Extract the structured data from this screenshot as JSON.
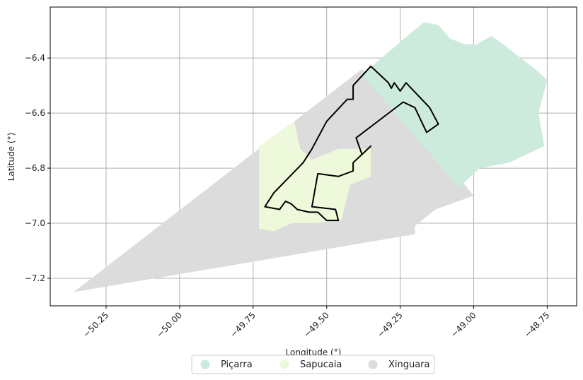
{
  "chart_data": {
    "type": "map",
    "xlabel": "Longitude (°)",
    "ylabel": "Latitude (°)",
    "xlim": [
      -50.44,
      -48.65
    ],
    "ylim": [
      -7.3,
      -6.215
    ],
    "grid": true,
    "legend_placement": "bottom-center",
    "xticks": [
      -50.25,
      -50.0,
      -49.75,
      -49.5,
      -49.25,
      -49.0,
      -48.75
    ],
    "xtick_labels": [
      "−50.25",
      "−50.00",
      "−49.75",
      "−49.50",
      "−49.25",
      "−49.00",
      "−48.75"
    ],
    "yticks": [
      -6.4,
      -6.6,
      -6.8,
      -7.0,
      -7.2
    ],
    "ytick_labels": [
      "−6.4",
      "−6.6",
      "−6.8",
      "−7.0",
      "−7.2"
    ],
    "legend": [
      {
        "name": "Piçarra",
        "color": "#cdebdc"
      },
      {
        "name": "Sapucaia",
        "color": "#eef8da"
      },
      {
        "name": "Xinguara",
        "color": "#dcdcdc"
      }
    ],
    "regions": [
      {
        "name": "Xinguara",
        "color": "#dcdcdc",
        "coords": [
          [
            -50.36,
            -7.25
          ],
          [
            -49.38,
            -6.44
          ],
          [
            -49.3,
            -6.52
          ],
          [
            -49.15,
            -6.7
          ],
          [
            -49.0,
            -6.9
          ],
          [
            -49.13,
            -6.95
          ],
          [
            -49.2,
            -7.01
          ],
          [
            -49.2,
            -7.04
          ],
          [
            -50.36,
            -7.25
          ]
        ]
      },
      {
        "name": "Piçarra",
        "color": "#cdebdc",
        "coords": [
          [
            -49.38,
            -6.46
          ],
          [
            -49.17,
            -6.27
          ],
          [
            -49.12,
            -6.28
          ],
          [
            -49.08,
            -6.33
          ],
          [
            -49.03,
            -6.35
          ],
          [
            -48.99,
            -6.35
          ],
          [
            -48.94,
            -6.32
          ],
          [
            -48.9,
            -6.35
          ],
          [
            -48.78,
            -6.45
          ],
          [
            -48.75,
            -6.48
          ],
          [
            -48.76,
            -6.52
          ],
          [
            -48.78,
            -6.6
          ],
          [
            -48.76,
            -6.72
          ],
          [
            -48.88,
            -6.78
          ],
          [
            -48.98,
            -6.8
          ],
          [
            -49.05,
            -6.87
          ],
          [
            -49.38,
            -6.46
          ]
        ]
      },
      {
        "name": "Sapucaia",
        "color": "#eef8da",
        "coords": [
          [
            -49.73,
            -6.72
          ],
          [
            -49.61,
            -6.63
          ],
          [
            -49.59,
            -6.73
          ],
          [
            -49.55,
            -6.77
          ],
          [
            -49.46,
            -6.73
          ],
          [
            -49.35,
            -6.73
          ],
          [
            -49.35,
            -6.83
          ],
          [
            -49.42,
            -6.86
          ],
          [
            -49.45,
            -6.99
          ],
          [
            -49.55,
            -7.0
          ],
          [
            -49.62,
            -7.0
          ],
          [
            -49.68,
            -7.03
          ],
          [
            -49.73,
            -7.02
          ],
          [
            -49.73,
            -6.72
          ]
        ]
      }
    ],
    "outline": {
      "color": "#000000",
      "coords": [
        [
          -49.71,
          -6.94
        ],
        [
          -49.68,
          -6.89
        ],
        [
          -49.58,
          -6.78
        ],
        [
          -49.55,
          -6.73
        ],
        [
          -49.5,
          -6.63
        ],
        [
          -49.43,
          -6.55
        ],
        [
          -49.41,
          -6.55
        ],
        [
          -49.41,
          -6.5
        ],
        [
          -49.35,
          -6.43
        ],
        [
          -49.33,
          -6.45
        ],
        [
          -49.31,
          -6.47
        ],
        [
          -49.29,
          -6.49
        ],
        [
          -49.28,
          -6.51
        ],
        [
          -49.27,
          -6.49
        ],
        [
          -49.25,
          -6.52
        ],
        [
          -49.23,
          -6.49
        ],
        [
          -49.15,
          -6.58
        ],
        [
          -49.12,
          -6.64
        ],
        [
          -49.16,
          -6.67
        ],
        [
          -49.2,
          -6.58
        ],
        [
          -49.24,
          -6.56
        ],
        [
          -49.4,
          -6.69
        ],
        [
          -49.38,
          -6.75
        ],
        [
          -49.35,
          -6.72
        ],
        [
          -49.41,
          -6.78
        ],
        [
          -49.41,
          -6.81
        ],
        [
          -49.46,
          -6.83
        ],
        [
          -49.53,
          -6.82
        ],
        [
          -49.55,
          -6.94
        ],
        [
          -49.47,
          -6.95
        ],
        [
          -49.46,
          -6.99
        ],
        [
          -49.5,
          -6.99
        ],
        [
          -49.53,
          -6.96
        ],
        [
          -49.56,
          -6.96
        ],
        [
          -49.6,
          -6.95
        ],
        [
          -49.62,
          -6.93
        ],
        [
          -49.64,
          -6.92
        ],
        [
          -49.66,
          -6.95
        ],
        [
          -49.71,
          -6.94
        ]
      ]
    }
  }
}
